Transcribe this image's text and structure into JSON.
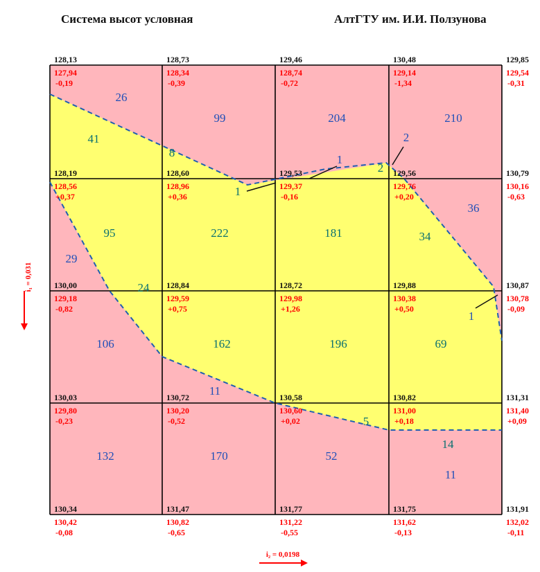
{
  "header": {
    "left_title": "Система высот условная",
    "right_title": "АлтГТУ им. И.И. Ползунова"
  },
  "colors": {
    "cut_fill": "#ffb6bc",
    "fill_fill": "#ffff70",
    "grid_line": "#000000",
    "zero_line": "#1f5fb0",
    "volume_blue": "#1f4fb8",
    "volume_teal": "#0a7070",
    "design_red": "#ff0000"
  },
  "gradients": {
    "vertical": "i₁ = 0,031",
    "horizontal": "i₂ = 0,0198"
  },
  "nodes": [
    [
      {
        "black": "128,13",
        "red1": "127,94",
        "red2": "-0,19"
      },
      {
        "black": "128,73",
        "red1": "128,34",
        "red2": "-0,39"
      },
      {
        "black": "129,46",
        "red1": "128,74",
        "red2": "-0,72"
      },
      {
        "black": "130,48",
        "red1": "129,14",
        "red2": "-1,34"
      },
      {
        "black": "129,85",
        "red1": "129,54",
        "red2": "-0,31"
      }
    ],
    [
      {
        "black": "128,19",
        "red1": "128,56",
        "red2": "+0,37"
      },
      {
        "black": "128,60",
        "red1": "128,96",
        "red2": "+0,36"
      },
      {
        "black": "129,53",
        "red1": "129,37",
        "red2": "-0,16"
      },
      {
        "black": "129,56",
        "red1": "129,76",
        "red2": "+0,20"
      },
      {
        "black": "130,79",
        "red1": "130,16",
        "red2": "-0,63"
      }
    ],
    [
      {
        "black": "130,00",
        "red1": "129,18",
        "red2": "-0,82"
      },
      {
        "black": "128,84",
        "red1": "129,59",
        "red2": "+0,75"
      },
      {
        "black": "128,72",
        "red1": "129,98",
        "red2": "+1,26"
      },
      {
        "black": "129,88",
        "red1": "130,38",
        "red2": "+0,50"
      },
      {
        "black": "130,87",
        "red1": "130,78",
        "red2": "-0,09"
      }
    ],
    [
      {
        "black": "130,03",
        "red1": "129,80",
        "red2": "-0,23"
      },
      {
        "black": "130,72",
        "red1": "130,20",
        "red2": "-0,52"
      },
      {
        "black": "130,58",
        "red1": "130,60",
        "red2": "+0,02"
      },
      {
        "black": "130,82",
        "red1": "131,00",
        "red2": "+0,18"
      },
      {
        "black": "131,31",
        "red1": "131,40",
        "red2": "+0,09"
      }
    ],
    [
      {
        "black": "130,34",
        "red1": "130,42",
        "red2": "-0,08"
      },
      {
        "black": "131,47",
        "red1": "130,82",
        "red2": "-0,65"
      },
      {
        "black": "131,77",
        "red1": "131,22",
        "red2": "-0,55"
      },
      {
        "black": "131,75",
        "red1": "131,62",
        "red2": "-0,13"
      },
      {
        "black": "131,91",
        "red1": "132,02",
        "red2": "-0,11"
      }
    ]
  ],
  "volumes": [
    {
      "text": "26",
      "tone": "blue"
    },
    {
      "text": "41",
      "tone": "teal"
    },
    {
      "text": "99",
      "tone": "blue"
    },
    {
      "text": "8",
      "tone": "teal"
    },
    {
      "text": "204",
      "tone": "blue"
    },
    {
      "text": "1",
      "tone": "blue"
    },
    {
      "text": "210",
      "tone": "blue"
    },
    {
      "text": "2",
      "tone": "blue"
    },
    {
      "text": "1",
      "tone": "teal"
    },
    {
      "text": "2",
      "tone": "teal"
    },
    {
      "text": "95",
      "tone": "teal"
    },
    {
      "text": "29",
      "tone": "blue"
    },
    {
      "text": "222",
      "tone": "teal"
    },
    {
      "text": "181",
      "tone": "teal"
    },
    {
      "text": "36",
      "tone": "blue"
    },
    {
      "text": "34",
      "tone": "teal"
    },
    {
      "text": "24",
      "tone": "teal"
    },
    {
      "text": "106",
      "tone": "blue"
    },
    {
      "text": "162",
      "tone": "teal"
    },
    {
      "text": "11",
      "tone": "blue"
    },
    {
      "text": "196",
      "tone": "teal"
    },
    {
      "text": "69",
      "tone": "teal"
    },
    {
      "text": "1",
      "tone": "blue"
    },
    {
      "text": "132",
      "tone": "blue"
    },
    {
      "text": "170",
      "tone": "blue"
    },
    {
      "text": "52",
      "tone": "blue"
    },
    {
      "text": "5",
      "tone": "teal"
    },
    {
      "text": "14",
      "tone": "teal"
    },
    {
      "text": "11",
      "tone": "blue"
    }
  ]
}
